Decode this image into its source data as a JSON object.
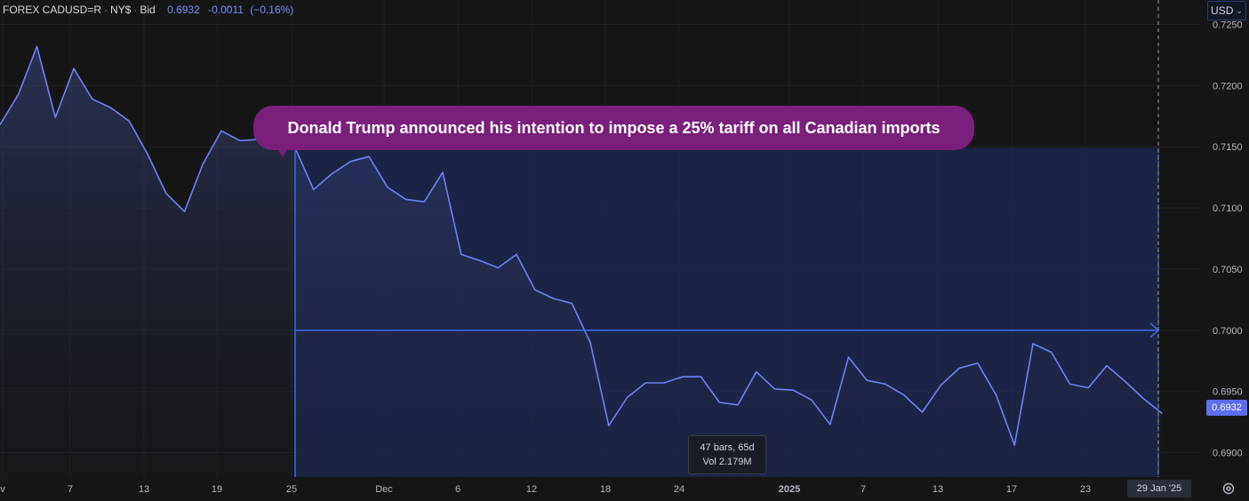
{
  "header": {
    "symbol": "FOREX CADUSD=R",
    "exchange": "NY$",
    "price_type": "Bid",
    "last": "0.6932",
    "change": "-0.0011",
    "change_pct": "(−0.16%)"
  },
  "currency_button": {
    "label": "USD"
  },
  "annotation": {
    "text": "Donald Trump announced his intention to impose a 25% tariff on all Canadian imports"
  },
  "measure_tooltip": {
    "line1": "47 bars, 65d",
    "line2": "Vol 2.179M"
  },
  "crosshair_date": "29 Jan '25",
  "last_price_label": "0.6932",
  "colors": {
    "background": "#161616",
    "line": "#6f80f5",
    "annotation_bg": "#7b1f7d",
    "measure": "#3f6ae8",
    "last_price": "#5b6ef2"
  },
  "chart_data": {
    "type": "area",
    "x_ticks": [
      "v",
      "7",
      "13",
      "19",
      "25",
      "Dec",
      "6",
      "12",
      "18",
      "24",
      "2025",
      "7",
      "13",
      "17",
      "23"
    ],
    "y_ticks": [
      "0.7250",
      "0.7200",
      "0.7150",
      "0.7100",
      "0.7050",
      "0.7000",
      "0.6950",
      "0.6900"
    ],
    "ylim": [
      0.688,
      0.727
    ],
    "grid": true,
    "series": [
      {
        "values": [
          0.7168,
          0.7193,
          0.7232,
          0.7174,
          0.7214,
          0.7189,
          0.7182,
          0.7171,
          0.7144,
          0.7112,
          0.7097,
          0.7136,
          0.7163,
          0.7155,
          0.7156,
          0.7154,
          0.7149,
          0.7115,
          0.7128,
          0.7138,
          0.7142,
          0.7117,
          0.7107,
          0.7105,
          0.7129,
          0.7062,
          0.7057,
          0.7051,
          0.7062,
          0.7033,
          0.7026,
          0.7022,
          0.699,
          0.6922,
          0.6945,
          0.6957,
          0.6957,
          0.6962,
          0.6962,
          0.6941,
          0.6939,
          0.6966,
          0.6952,
          0.6951,
          0.6943,
          0.6923,
          0.6978,
          0.6959,
          0.6956,
          0.6947,
          0.6933,
          0.6955,
          0.6969,
          0.6973,
          0.6947,
          0.6906,
          0.6989,
          0.6982,
          0.6956,
          0.6953,
          0.6971,
          0.6958,
          0.6944,
          0.6932
        ]
      }
    ],
    "measure_start_price": 0.7149,
    "measure_end_price": 0.7
  }
}
